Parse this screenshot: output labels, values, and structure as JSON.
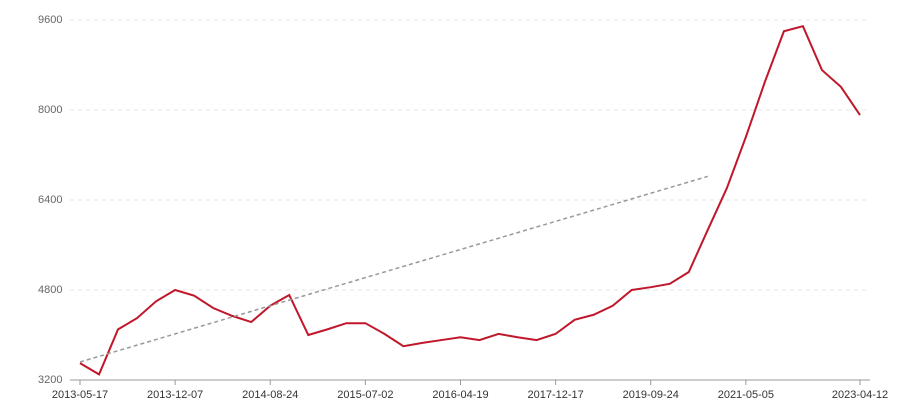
{
  "chart_data": {
    "type": "line",
    "categories": [
      "2013-05-17",
      null,
      null,
      null,
      null,
      "2013-12-07",
      null,
      null,
      null,
      null,
      "2014-08-24",
      null,
      null,
      null,
      null,
      "2015-07-02",
      null,
      null,
      null,
      null,
      "2016-04-19",
      null,
      null,
      null,
      null,
      "2017-12-17",
      null,
      null,
      null,
      null,
      "2019-09-24",
      null,
      null,
      null,
      null,
      "2021-05-05",
      null,
      null,
      null,
      null,
      null,
      "2023-04-12"
    ],
    "series": [
      {
        "color": "#c0182a",
        "dashed": false,
        "values": [
          3500,
          3300,
          4100,
          4300,
          4600,
          4800,
          4700,
          4480,
          4340,
          4230,
          4520,
          4710,
          4000,
          4100,
          4210,
          4210,
          4020,
          3800,
          3860,
          3910,
          3960,
          3910,
          4020,
          3960,
          3910,
          4020,
          4270,
          4360,
          4520,
          4800,
          4850,
          4910,
          5120,
          5870,
          6610,
          7520,
          8500,
          9400,
          9490,
          8710,
          8410,
          7910
        ]
      },
      {
        "color": "#999999",
        "dashed": true,
        "values": [
          3520,
          3620,
          3720,
          3820,
          3920,
          4020,
          4120,
          4220,
          4320,
          4420,
          4520,
          4620,
          4720,
          4820,
          4920,
          5020,
          5120,
          5220,
          5320,
          5420,
          5520,
          5620,
          5720,
          5820,
          5920,
          6020,
          6120,
          6220,
          6320,
          6420,
          6520,
          6620,
          6720,
          6820,
          null,
          null,
          null,
          null,
          null,
          null,
          null,
          null
        ]
      }
    ],
    "ylim": [
      3200,
      9600
    ],
    "yticks": [
      3200,
      4800,
      6400,
      8000,
      9600
    ],
    "grid": true
  }
}
